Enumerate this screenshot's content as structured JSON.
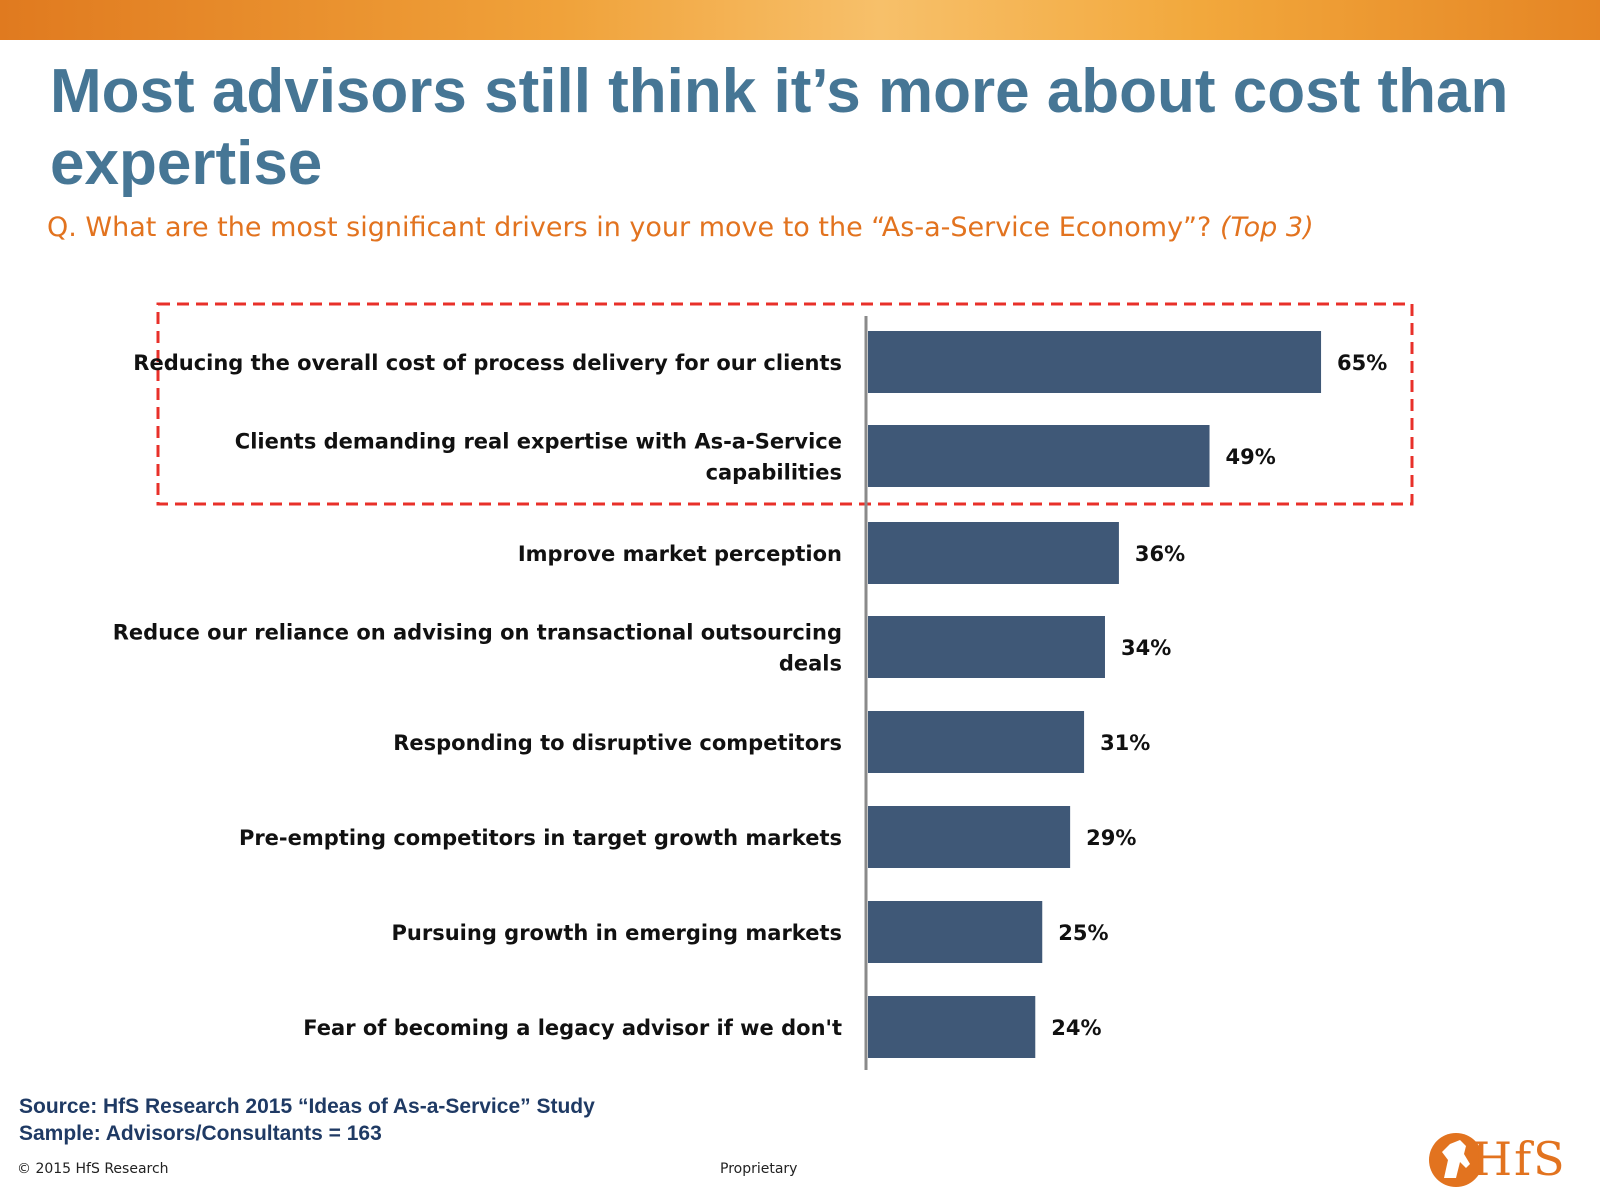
{
  "header": {
    "title": "Most advisors still think it’s more about cost than expertise",
    "question": "Q. What are the most significant drivers in your move to the “As-a-Service Economy”?",
    "question_tag": "(Top 3)"
  },
  "chart_data": {
    "type": "bar",
    "orientation": "horizontal",
    "categories": [
      [
        "Reducing the overall cost of process delivery for our clients"
      ],
      [
        "Clients demanding real expertise with As-a-Service",
        "capabilities"
      ],
      [
        "Improve market perception"
      ],
      [
        "Reduce our reliance on advising on transactional outsourcing",
        "deals"
      ],
      [
        "Responding to disruptive competitors"
      ],
      [
        "Pre-empting competitors in target growth markets"
      ],
      [
        "Pursuing growth in emerging markets"
      ],
      [
        "Fear of becoming a legacy advisor if we don't"
      ]
    ],
    "values": [
      65,
      49,
      36,
      34,
      31,
      29,
      25,
      24
    ],
    "value_labels": [
      "65%",
      "49%",
      "36%",
      "34%",
      "31%",
      "29%",
      "25%",
      "24%"
    ],
    "highlighted": [
      0,
      1
    ],
    "bar_color": "#3f5877",
    "highlight_color": "#e8302a",
    "grid": false
  },
  "source": {
    "line1": "Source: HfS Research 2015 “Ideas of As-a-Service” Study",
    "line2": "Sample: Advisors/Consultants = 163"
  },
  "footer": {
    "copyright": "© 2015 HfS Research",
    "center": "Proprietary"
  },
  "logo": {
    "text": "HfS",
    "icon": "horse-head-logo"
  },
  "colors": {
    "title": "#467695",
    "question": "#e2731f",
    "source": "#1f3a64"
  }
}
